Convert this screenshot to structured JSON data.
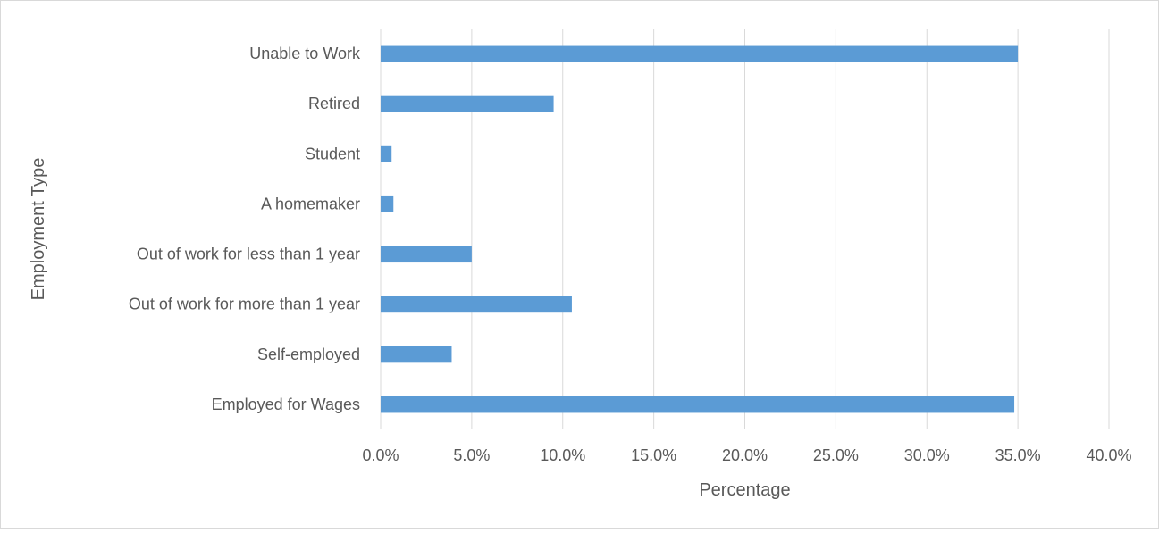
{
  "chart_data": {
    "type": "bar",
    "orientation": "horizontal",
    "title": "",
    "xlabel": "Percentage",
    "ylabel": "Employment Type",
    "categories": [
      "Unable to Work",
      "Retired",
      "Student",
      "A homemaker",
      "Out of work for less than 1 year",
      "Out of work for more than 1 year",
      "Self-employed",
      "Employed for Wages"
    ],
    "values": [
      35.0,
      9.5,
      0.6,
      0.7,
      5.0,
      10.5,
      3.9,
      34.8
    ],
    "xlim": [
      0,
      40
    ],
    "ticks": [
      "0.0%",
      "5.0%",
      "10.0%",
      "15.0%",
      "20.0%",
      "25.0%",
      "30.0%",
      "35.0%",
      "40.0%"
    ],
    "tick_values": [
      0,
      5,
      10,
      15,
      20,
      25,
      30,
      35,
      40
    ],
    "grid": true,
    "legend": "none",
    "bar_color": "#5b9bd5",
    "grid_color": "#d9d9d9",
    "text_color": "#595959"
  }
}
